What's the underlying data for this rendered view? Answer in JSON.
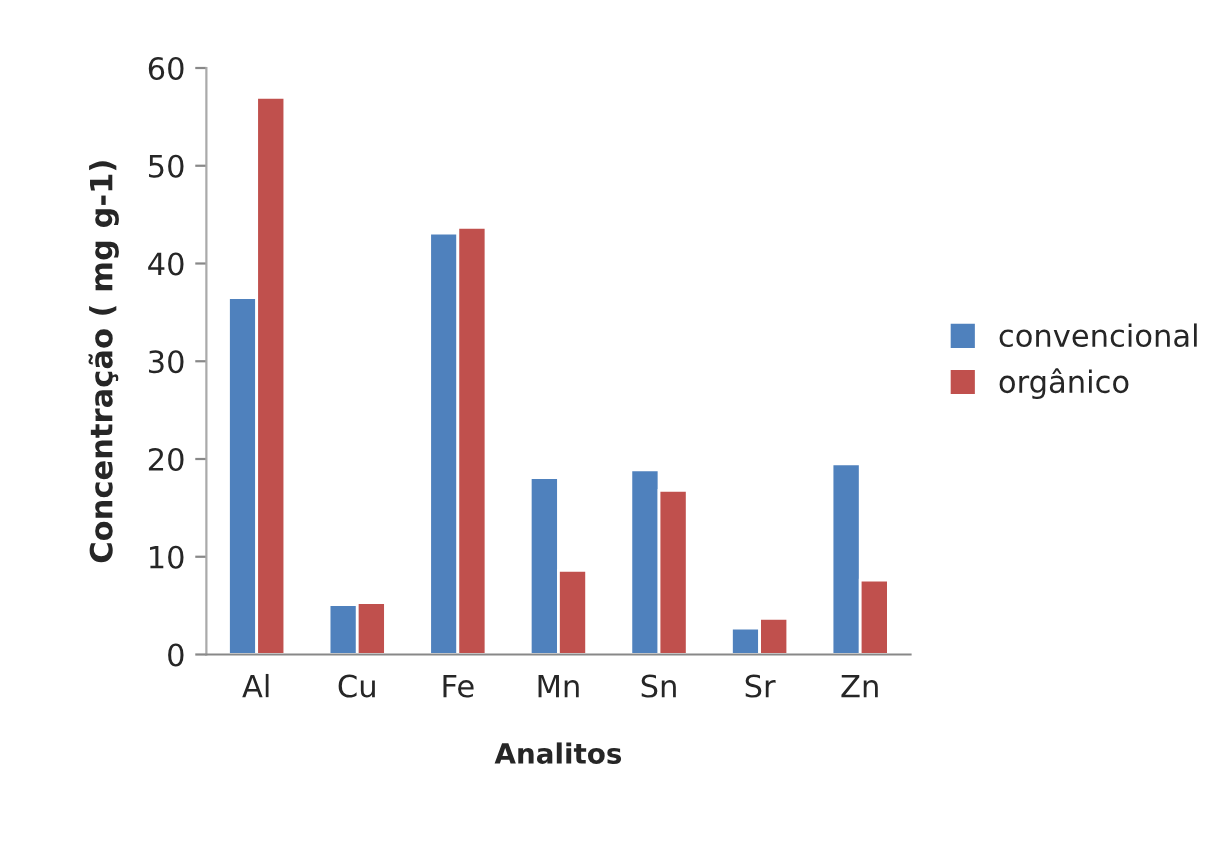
{
  "chart_data": {
    "type": "bar",
    "xlabel": "Analitos",
    "ylabel": "Concentração ( mg g-1)",
    "categories": [
      "Al",
      "Cu",
      "Fe",
      "Mn",
      "Sn",
      "Sr",
      "Zn"
    ],
    "series": [
      {
        "name": "convencional",
        "color": "#4f81bd",
        "values": [
          36.5,
          5.1,
          43.1,
          18.1,
          18.9,
          2.7,
          19.5
        ]
      },
      {
        "name": "orgânico",
        "color": "#c0504d",
        "values": [
          57.0,
          5.3,
          43.7,
          8.6,
          16.8,
          3.7,
          7.6
        ]
      }
    ],
    "ylim": [
      0,
      60
    ],
    "yticks": [
      0,
      10,
      20,
      30,
      40,
      50,
      60
    ],
    "grid": false,
    "legend": "right"
  }
}
